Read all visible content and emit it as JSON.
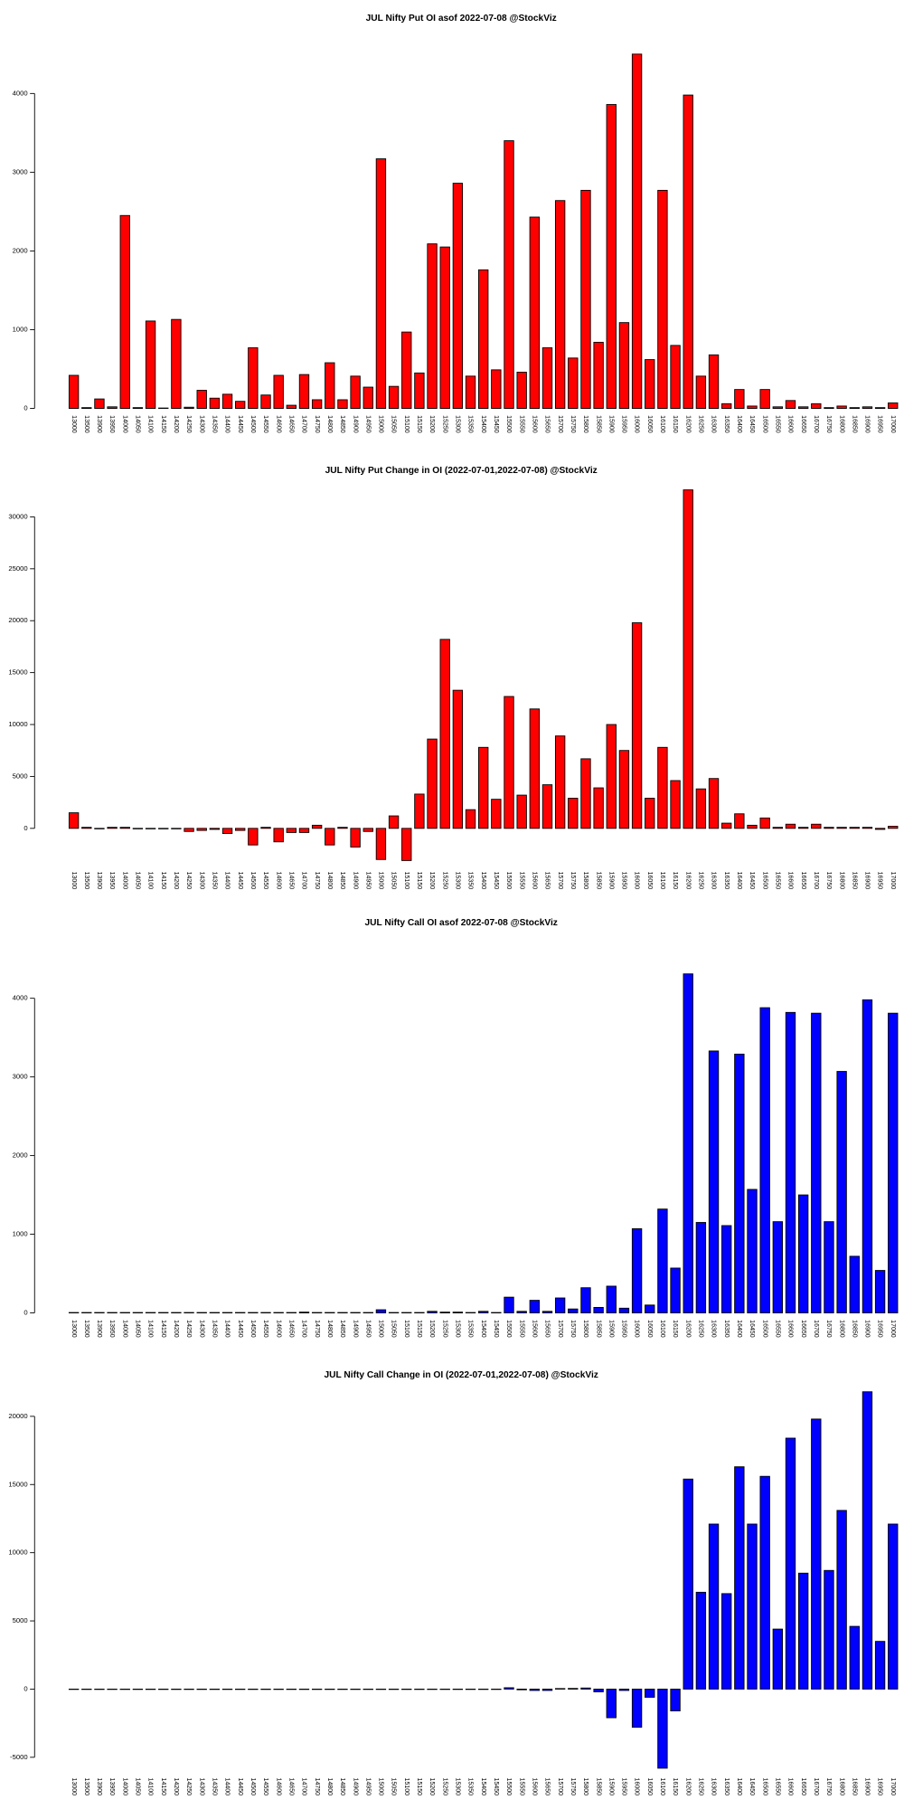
{
  "chart_data": [
    {
      "type": "bar",
      "title": "JUL Nifty Put OI asof 2022-07-08 @StockViz",
      "color": "#ff0000",
      "categories": [
        "13000",
        "13500",
        "13900",
        "13950",
        "14000",
        "14050",
        "14100",
        "14150",
        "14200",
        "14250",
        "14300",
        "14350",
        "14400",
        "14450",
        "14500",
        "14550",
        "14600",
        "14650",
        "14700",
        "14750",
        "14800",
        "14850",
        "14900",
        "14950",
        "15000",
        "15050",
        "15100",
        "15150",
        "15200",
        "15250",
        "15300",
        "15350",
        "15400",
        "15450",
        "15500",
        "15550",
        "15600",
        "15650",
        "15700",
        "15750",
        "15800",
        "15850",
        "15900",
        "15950",
        "16000",
        "16050",
        "16100",
        "16150",
        "16200",
        "16250",
        "16300",
        "16350",
        "16400",
        "16450",
        "16500",
        "16550",
        "16600",
        "16650",
        "16700",
        "16750",
        "16800",
        "16850",
        "16900",
        "16950",
        "17000"
      ],
      "values": [
        420,
        10,
        120,
        20,
        2450,
        10,
        1110,
        5,
        1130,
        15,
        230,
        130,
        180,
        90,
        770,
        170,
        420,
        40,
        430,
        110,
        580,
        110,
        410,
        270,
        3170,
        280,
        970,
        450,
        2090,
        2050,
        2860,
        410,
        1760,
        490,
        3400,
        460,
        2430,
        770,
        2640,
        640,
        2770,
        840,
        3860,
        1090,
        4500,
        620,
        2770,
        800,
        3980,
        410,
        680,
        60,
        240,
        30,
        240,
        20,
        100,
        20,
        60,
        10,
        30,
        10,
        20,
        10,
        70
      ],
      "ylim": [
        0,
        4500
      ],
      "yticks": [
        0,
        1000,
        2000,
        3000,
        4000
      ]
    },
    {
      "type": "bar",
      "title": "JUL Nifty Put Change in OI (2022-07-01,2022-07-08) @StockViz",
      "color": "#ff0000",
      "categories": [
        "13000",
        "13500",
        "13900",
        "13950",
        "14000",
        "14050",
        "14100",
        "14150",
        "14200",
        "14250",
        "14300",
        "14350",
        "14400",
        "14450",
        "14500",
        "14550",
        "14600",
        "14650",
        "14700",
        "14750",
        "14800",
        "14850",
        "14900",
        "14950",
        "15000",
        "15050",
        "15100",
        "15150",
        "15200",
        "15250",
        "15300",
        "15350",
        "15400",
        "15450",
        "15500",
        "15550",
        "15600",
        "15650",
        "15700",
        "15750",
        "15800",
        "15850",
        "15900",
        "15950",
        "16000",
        "16050",
        "16100",
        "16150",
        "16200",
        "16250",
        "16300",
        "16350",
        "16400",
        "16450",
        "16500",
        "16550",
        "16600",
        "16650",
        "16700",
        "16750",
        "16800",
        "16850",
        "16900",
        "16950",
        "17000"
      ],
      "values": [
        1500,
        100,
        -50,
        100,
        100,
        -50,
        -50,
        -50,
        -50,
        -300,
        -200,
        -100,
        -500,
        -200,
        -1600,
        100,
        -1300,
        -400,
        -400,
        300,
        -1600,
        100,
        -1800,
        -300,
        -3000,
        1200,
        -3100,
        3300,
        8600,
        18200,
        13300,
        1800,
        7800,
        2800,
        12700,
        3200,
        11500,
        4200,
        8900,
        2900,
        6700,
        3900,
        10000,
        7500,
        19800,
        2900,
        7800,
        4600,
        32600,
        3800,
        4800,
        500,
        1400,
        300,
        1000,
        100,
        400,
        100,
        400,
        100,
        100,
        100,
        100,
        -100,
        200
      ],
      "ylim": [
        -3500,
        33000
      ],
      "yticks": [
        0,
        5000,
        10000,
        15000,
        20000,
        25000,
        30000
      ]
    },
    {
      "type": "bar",
      "title": "JUL Nifty Call OI asof 2022-07-08 @StockViz",
      "color": "#0000ff",
      "categories": [
        "13000",
        "13500",
        "13900",
        "13950",
        "14000",
        "14050",
        "14100",
        "14150",
        "14200",
        "14250",
        "14300",
        "14350",
        "14400",
        "14450",
        "14500",
        "14550",
        "14600",
        "14650",
        "14700",
        "14750",
        "14800",
        "14850",
        "14900",
        "14950",
        "15000",
        "15050",
        "15100",
        "15150",
        "15200",
        "15250",
        "15300",
        "15350",
        "15400",
        "15450",
        "15500",
        "15550",
        "15600",
        "15650",
        "15700",
        "15750",
        "15800",
        "15850",
        "15900",
        "15950",
        "16000",
        "16050",
        "16100",
        "16150",
        "16200",
        "16250",
        "16300",
        "16350",
        "16400",
        "16450",
        "16500",
        "16550",
        "16600",
        "16650",
        "16700",
        "16750",
        "16800",
        "16850",
        "16900",
        "16950",
        "17000"
      ],
      "values": [
        5,
        5,
        5,
        5,
        5,
        5,
        5,
        5,
        5,
        5,
        5,
        5,
        5,
        5,
        5,
        5,
        5,
        5,
        10,
        5,
        5,
        5,
        5,
        5,
        40,
        5,
        5,
        5,
        20,
        10,
        10,
        5,
        20,
        5,
        200,
        20,
        160,
        20,
        190,
        50,
        320,
        70,
        340,
        60,
        1070,
        100,
        1320,
        570,
        4310,
        1150,
        3330,
        1110,
        3290,
        1570,
        3880,
        1160,
        3820,
        1500,
        3810,
        1160,
        3070,
        720,
        3980,
        540,
        3810
      ],
      "ylim": [
        0,
        4400
      ],
      "yticks": [
        0,
        1000,
        2000,
        3000,
        4000
      ]
    },
    {
      "type": "bar",
      "title": "JUL Nifty Call Change in OI (2022-07-01,2022-07-08) @StockViz",
      "color": "#0000ff",
      "categories": [
        "13000",
        "13500",
        "13900",
        "13950",
        "14000",
        "14050",
        "14100",
        "14150",
        "14200",
        "14250",
        "14300",
        "14350",
        "14400",
        "14450",
        "14500",
        "14550",
        "14600",
        "14650",
        "14700",
        "14750",
        "14800",
        "14850",
        "14900",
        "14950",
        "15000",
        "15050",
        "15100",
        "15150",
        "15200",
        "15250",
        "15300",
        "15350",
        "15400",
        "15450",
        "15500",
        "15550",
        "15600",
        "15650",
        "15700",
        "15750",
        "15800",
        "15850",
        "15900",
        "15950",
        "16000",
        "16050",
        "16100",
        "16150",
        "16200",
        "16250",
        "16300",
        "16350",
        "16400",
        "16450",
        "16500",
        "16550",
        "16600",
        "16650",
        "16700",
        "16750",
        "16800",
        "16850",
        "16900",
        "16950",
        "17000"
      ],
      "values": [
        0,
        0,
        0,
        0,
        0,
        0,
        0,
        0,
        0,
        0,
        0,
        0,
        0,
        0,
        0,
        0,
        0,
        0,
        0,
        0,
        0,
        0,
        0,
        0,
        0,
        0,
        0,
        0,
        0,
        0,
        0,
        0,
        0,
        0,
        100,
        -50,
        -100,
        -100,
        40,
        50,
        80,
        -200,
        -2100,
        -100,
        -2800,
        -600,
        -5800,
        -1600,
        15400,
        7100,
        12100,
        7000,
        16300,
        12100,
        15600,
        4400,
        18400,
        8500,
        19800,
        8700,
        13100,
        4600,
        21800,
        3500,
        12100
      ],
      "ylim": [
        -6000,
        22000
      ],
      "yticks": [
        -5000,
        0,
        5000,
        10000,
        15000,
        20000
      ]
    }
  ]
}
